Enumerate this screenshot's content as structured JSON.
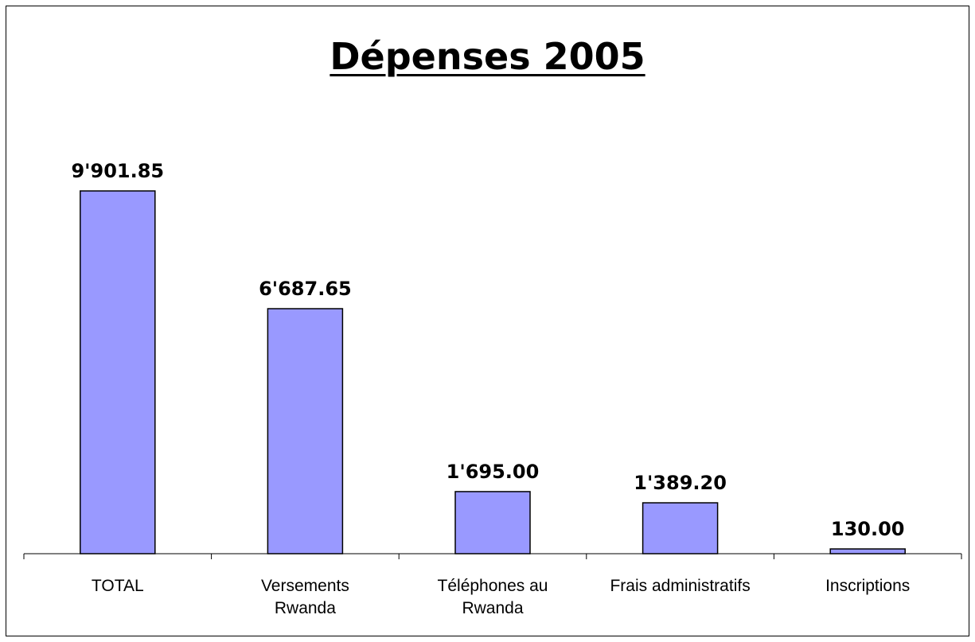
{
  "chart_data": {
    "type": "bar",
    "title": "Dépenses 2005",
    "categories": [
      [
        "TOTAL"
      ],
      [
        "Versements",
        "Rwanda"
      ],
      [
        "Téléphones au",
        "Rwanda"
      ],
      [
        "Frais administratifs"
      ],
      [
        "Inscriptions"
      ]
    ],
    "values": [
      9901.85,
      6687.65,
      1695.0,
      1389.2,
      130.0
    ],
    "value_labels": [
      "9'901.85",
      "6'687.65",
      "1'695.00",
      "1'389.20",
      "130.00"
    ],
    "ylim": [
      0,
      10000
    ],
    "grid": false,
    "legend": "none",
    "bar_color": "#9999ff",
    "bar_border_color": "#000000"
  }
}
